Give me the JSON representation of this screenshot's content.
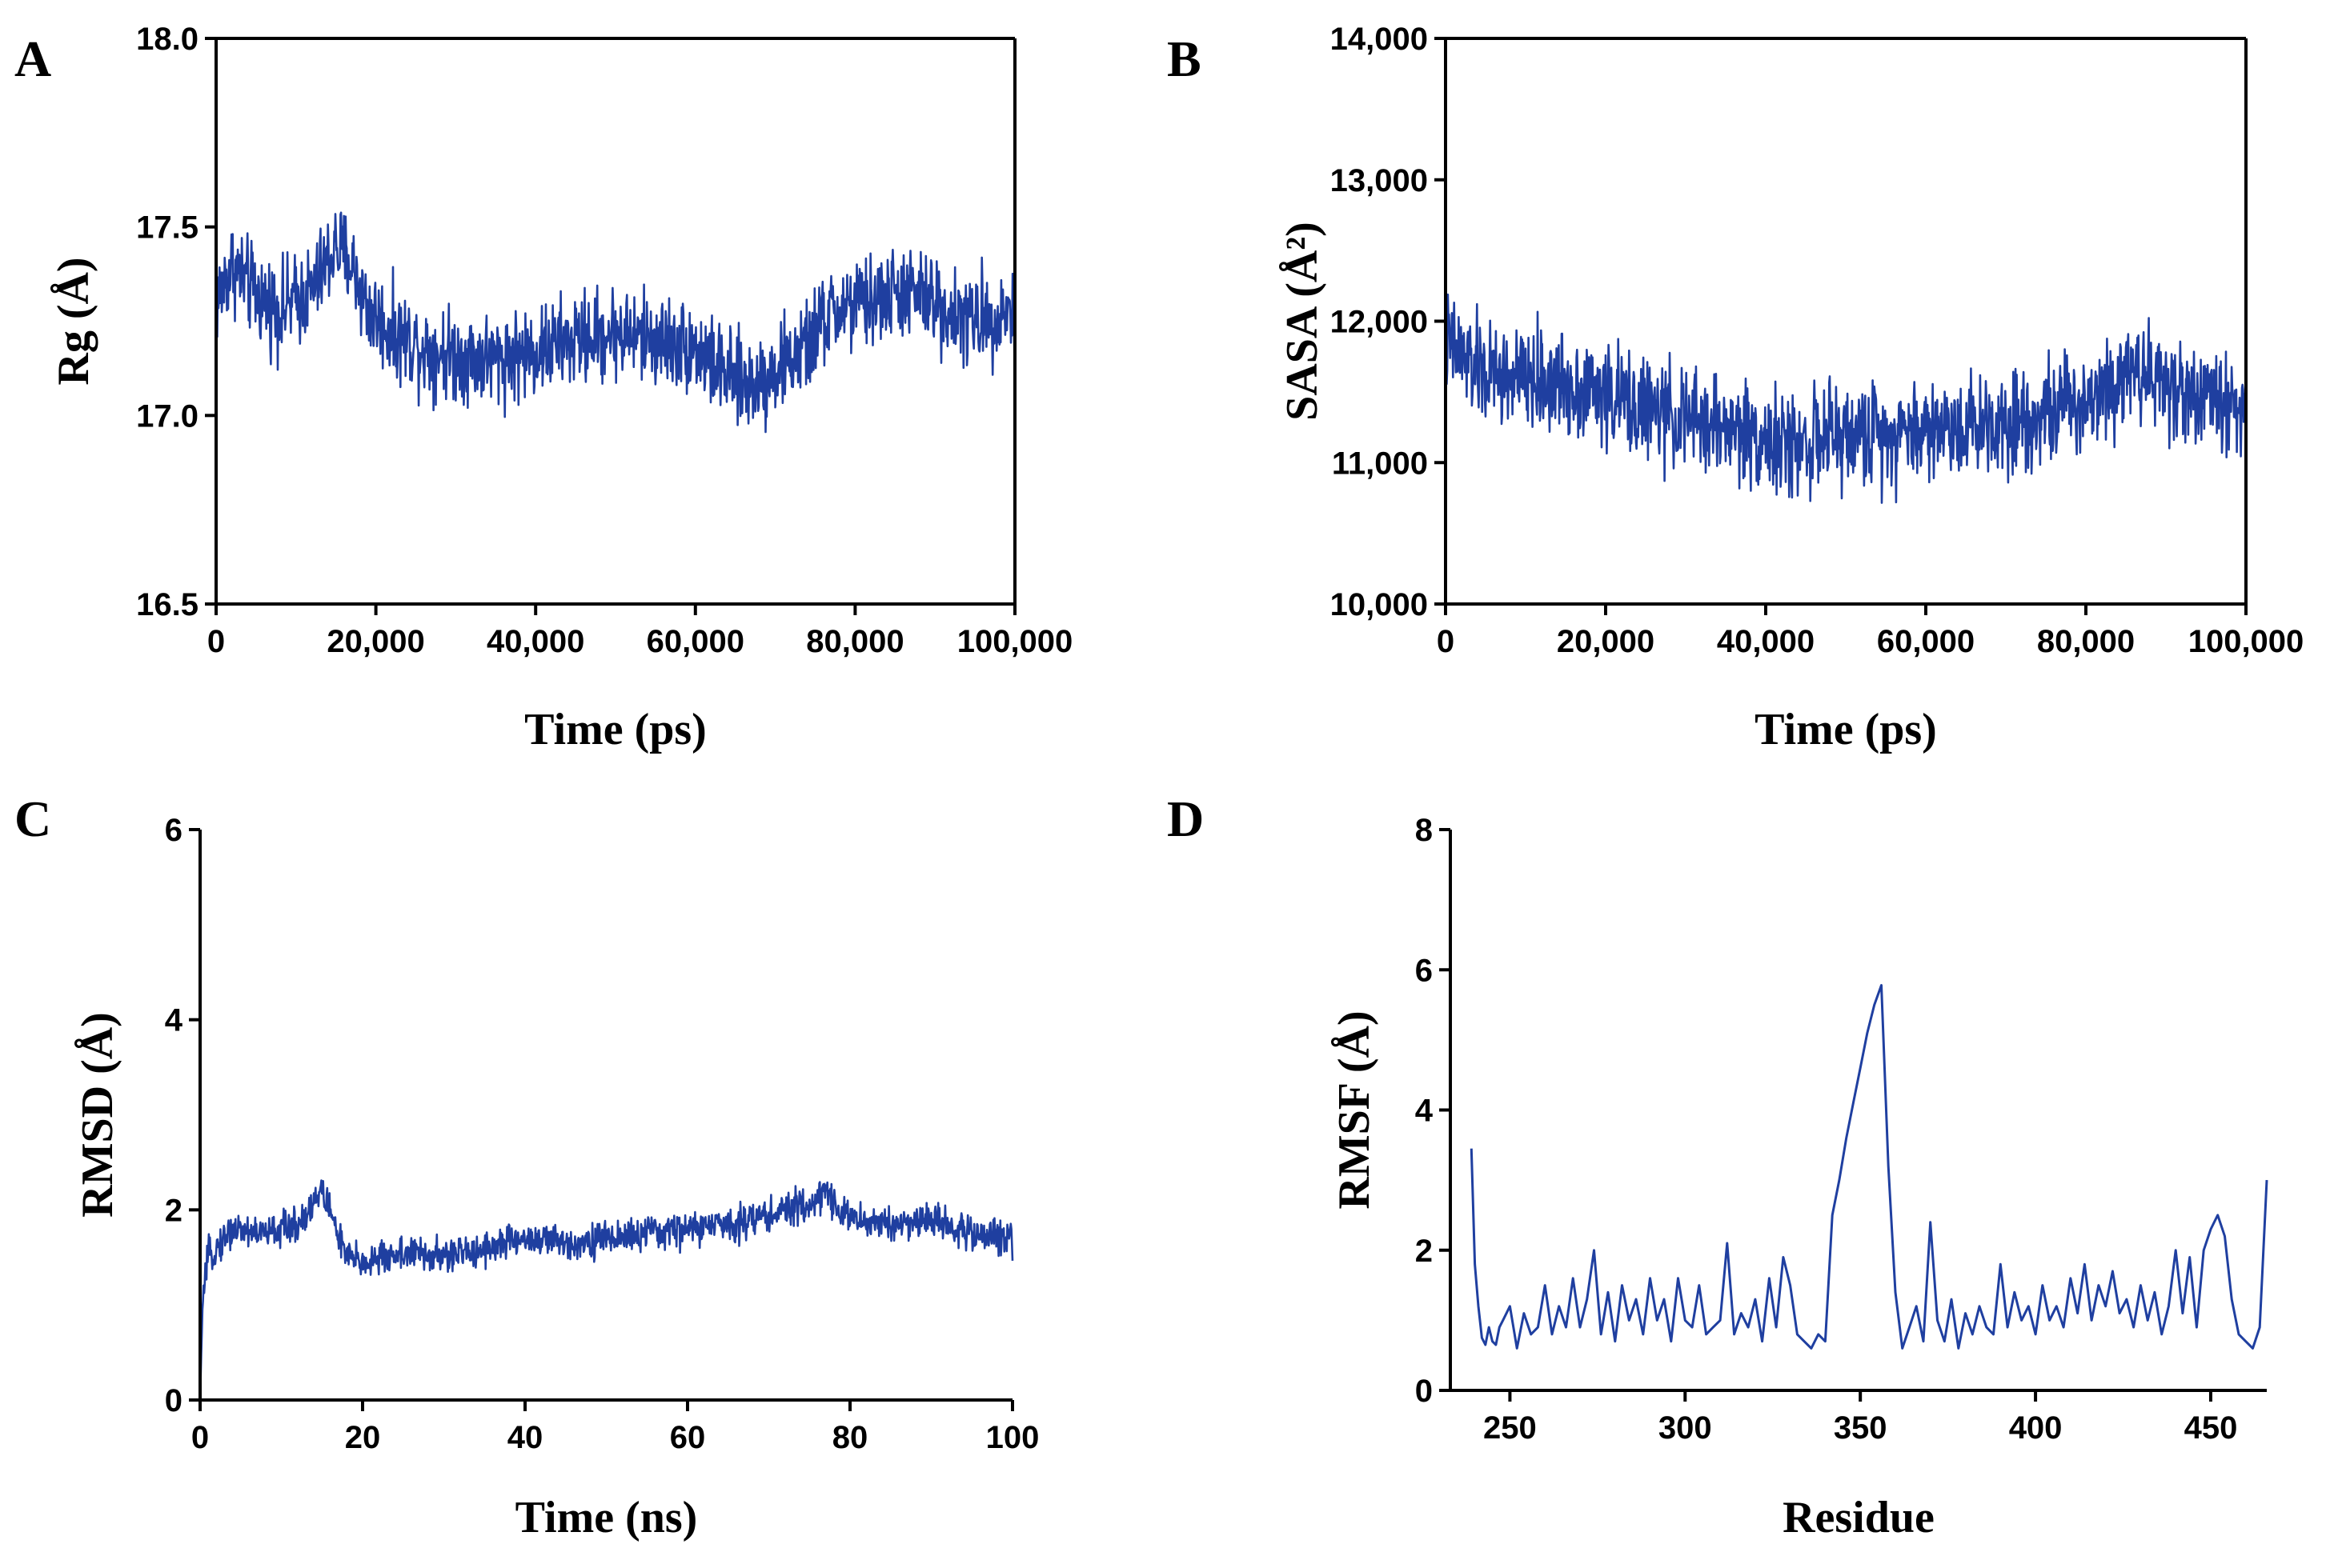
{
  "colors": {
    "series": "#1f3fa0",
    "axis": "#000000"
  },
  "chart_data": [
    {
      "panel": "A",
      "type": "line",
      "xlabel": "Time (ps)",
      "ylabel": "Rg (Å)",
      "xlim": [
        0,
        100000
      ],
      "ylim": [
        16.5,
        18.0
      ],
      "xticks": [
        0,
        20000,
        40000,
        60000,
        80000,
        100000
      ],
      "xtick_labels": [
        "0",
        "20,000",
        "40,000",
        "60,000",
        "80,000",
        "100,000"
      ],
      "yticks": [
        16.5,
        17.0,
        17.5,
        18.0
      ],
      "ytick_labels": [
        "16.5",
        "17.0",
        "17.5",
        "18.0"
      ],
      "grid": false,
      "noise": 0.06,
      "x": [
        0,
        2000,
        5000,
        8000,
        12000,
        15000,
        17000,
        19000,
        22000,
        26000,
        30000,
        35000,
        40000,
        45000,
        50000,
        55000,
        60000,
        64000,
        67000,
        70000,
        74000,
        76000,
        78000,
        82000,
        86000,
        90000,
        94000,
        100000
      ],
      "y": [
        17.3,
        17.4,
        17.32,
        17.28,
        17.33,
        17.45,
        17.4,
        17.28,
        17.22,
        17.18,
        17.16,
        17.15,
        17.17,
        17.2,
        17.22,
        17.2,
        17.18,
        17.1,
        17.08,
        17.12,
        17.18,
        17.25,
        17.28,
        17.3,
        17.33,
        17.3,
        17.25,
        17.28
      ]
    },
    {
      "panel": "B",
      "type": "line",
      "xlabel": "Time (ps)",
      "ylabel": "SASA (Å²)",
      "xlim": [
        0,
        100000
      ],
      "ylim": [
        10000,
        14000
      ],
      "xticks": [
        0,
        20000,
        40000,
        60000,
        80000,
        100000
      ],
      "xtick_labels": [
        "0",
        "20,000",
        "40,000",
        "60,000",
        "80,000",
        "100,000"
      ],
      "yticks": [
        10000,
        11000,
        12000,
        13000,
        14000
      ],
      "ytick_labels": [
        "10,000",
        "11,000",
        "12,000",
        "13,000",
        "14,000"
      ],
      "grid": false,
      "noise": 180,
      "x": [
        0,
        2000,
        5000,
        10000,
        15000,
        20000,
        25000,
        30000,
        35000,
        40000,
        42000,
        45000,
        50000,
        55000,
        60000,
        65000,
        70000,
        75000,
        80000,
        84000,
        86000,
        90000,
        95000,
        100000
      ],
      "y": [
        11850,
        11750,
        11620,
        11580,
        11560,
        11480,
        11380,
        11300,
        11250,
        11180,
        11100,
        11150,
        11180,
        11220,
        11240,
        11270,
        11300,
        11360,
        11450,
        11600,
        11700,
        11550,
        11450,
        11400
      ]
    },
    {
      "panel": "C",
      "type": "line",
      "xlabel": "Time (ns)",
      "ylabel": "RMSD (Å)",
      "xlim": [
        0,
        100
      ],
      "ylim": [
        0,
        6
      ],
      "xticks": [
        0,
        20,
        40,
        60,
        80,
        100
      ],
      "xtick_labels": [
        "0",
        "20",
        "40",
        "60",
        "80",
        "100"
      ],
      "yticks": [
        0,
        2,
        4,
        6
      ],
      "ytick_labels": [
        "0",
        "2",
        "4",
        "6"
      ],
      "grid": false,
      "noise": 0.09,
      "x": [
        0,
        0.3,
        1,
        2,
        4,
        8,
        12,
        15,
        16,
        18,
        20,
        25,
        30,
        35,
        40,
        45,
        50,
        55,
        60,
        65,
        70,
        75,
        77,
        80,
        85,
        90,
        95,
        100
      ],
      "y": [
        0,
        1.0,
        1.5,
        1.6,
        1.8,
        1.75,
        1.85,
        2.2,
        2.0,
        1.5,
        1.45,
        1.55,
        1.5,
        1.6,
        1.7,
        1.65,
        1.7,
        1.75,
        1.8,
        1.85,
        1.95,
        2.05,
        2.2,
        1.9,
        1.85,
        1.9,
        1.75,
        1.7
      ]
    },
    {
      "panel": "D",
      "type": "line",
      "xlabel": "Residue",
      "ylabel": "RMSF (Å)",
      "xlim": [
        233,
        466
      ],
      "ylim": [
        0,
        8
      ],
      "xticks": [
        250,
        300,
        350,
        400,
        450
      ],
      "xtick_labels": [
        "250",
        "300",
        "350",
        "400",
        "450"
      ],
      "yticks": [
        0,
        2,
        4,
        6,
        8
      ],
      "ytick_labels": [
        "0",
        "2",
        "4",
        "6",
        "8"
      ],
      "grid": false,
      "x": [
        239,
        240,
        241,
        242,
        243,
        244,
        245,
        246,
        247,
        248,
        250,
        252,
        254,
        256,
        258,
        260,
        262,
        264,
        266,
        268,
        270,
        272,
        274,
        276,
        278,
        280,
        282,
        284,
        286,
        288,
        290,
        292,
        294,
        296,
        298,
        300,
        302,
        304,
        306,
        308,
        310,
        312,
        314,
        316,
        318,
        320,
        322,
        324,
        326,
        328,
        330,
        332,
        334,
        336,
        338,
        340,
        342,
        344,
        346,
        348,
        350,
        352,
        354,
        356,
        358,
        360,
        362,
        364,
        366,
        368,
        370,
        372,
        374,
        376,
        378,
        380,
        382,
        384,
        386,
        388,
        390,
        392,
        394,
        396,
        398,
        400,
        402,
        404,
        406,
        408,
        410,
        412,
        414,
        416,
        418,
        420,
        422,
        424,
        426,
        428,
        430,
        432,
        434,
        436,
        438,
        440,
        442,
        444,
        446,
        448,
        450,
        452,
        454,
        456,
        458,
        460,
        462,
        464,
        466
      ],
      "y": [
        3.45,
        1.8,
        1.2,
        0.75,
        0.65,
        0.9,
        0.7,
        0.65,
        0.9,
        1.0,
        1.2,
        0.6,
        1.1,
        0.8,
        0.9,
        1.5,
        0.8,
        1.2,
        0.9,
        1.6,
        0.9,
        1.3,
        2.0,
        0.8,
        1.4,
        0.7,
        1.5,
        1.0,
        1.3,
        0.8,
        1.6,
        1.0,
        1.3,
        0.7,
        1.6,
        1.0,
        0.9,
        1.5,
        0.8,
        0.9,
        1.0,
        2.1,
        0.8,
        1.1,
        0.9,
        1.3,
        0.7,
        1.6,
        0.9,
        1.9,
        1.5,
        0.8,
        0.7,
        0.6,
        0.8,
        0.7,
        2.5,
        3.0,
        3.6,
        4.1,
        4.6,
        5.1,
        5.5,
        5.78,
        3.2,
        1.4,
        0.6,
        0.9,
        1.2,
        0.7,
        2.4,
        1.0,
        0.7,
        1.3,
        0.6,
        1.1,
        0.8,
        1.2,
        0.9,
        0.8,
        1.8,
        0.9,
        1.4,
        1.0,
        1.2,
        0.8,
        1.5,
        1.0,
        1.2,
        0.9,
        1.6,
        1.1,
        1.8,
        1.0,
        1.5,
        1.2,
        1.7,
        1.1,
        1.3,
        0.9,
        1.5,
        1.0,
        1.4,
        0.8,
        1.2,
        2.0,
        1.1,
        1.9,
        0.9,
        2.0,
        2.3,
        2.5,
        2.2,
        1.3,
        0.8,
        0.7,
        0.6,
        0.9,
        3.0
      ]
    }
  ]
}
